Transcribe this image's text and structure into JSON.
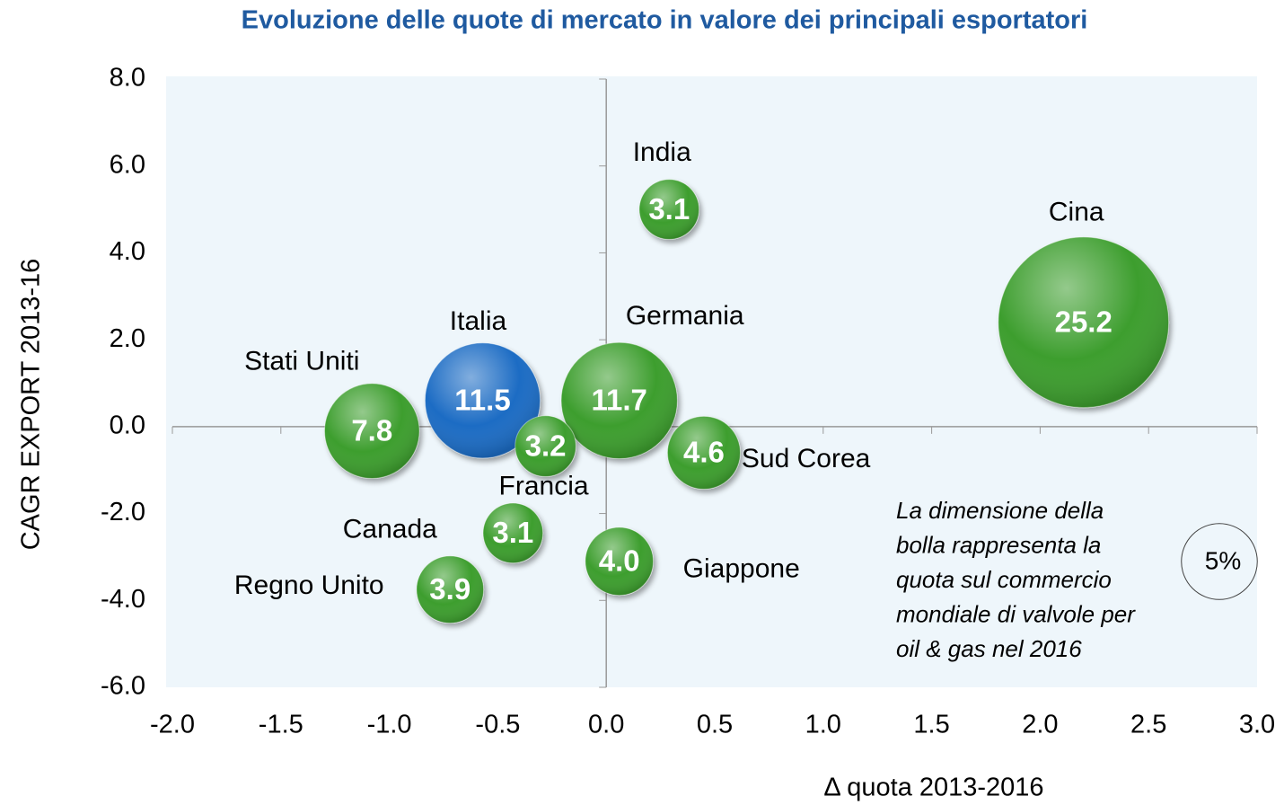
{
  "chart_data": {
    "type": "bubble",
    "title": "Evoluzione delle quote di mercato in valore dei principali esportatori",
    "xlabel": "Δ quota 2013-2016",
    "ylabel": "CAGR  EXPORT 2013-16",
    "xlim": [
      -2,
      3
    ],
    "ylim": [
      -6,
      8
    ],
    "xticks": [
      {
        "value": -2,
        "label": "-2.0"
      },
      {
        "value": -1.5,
        "label": "-1.5"
      },
      {
        "value": -1,
        "label": "-1.0"
      },
      {
        "value": -0.5,
        "label": "-0.5"
      },
      {
        "value": 0,
        "label": "0.0"
      },
      {
        "value": 0.5,
        "label": "0.5"
      },
      {
        "value": 1,
        "label": "1.0"
      },
      {
        "value": 1.5,
        "label": "1.5"
      },
      {
        "value": 2,
        "label": "2.0"
      },
      {
        "value": 2.5,
        "label": "2.5"
      },
      {
        "value": 3,
        "label": "3.0"
      }
    ],
    "yticks": [
      {
        "value": -6,
        "label": "-6.0"
      },
      {
        "value": -4,
        "label": "-4.0"
      },
      {
        "value": -2,
        "label": "-2.0"
      },
      {
        "value": 0,
        "label": "0.0"
      },
      {
        "value": 2,
        "label": "2.0"
      },
      {
        "value": 4,
        "label": "4.0"
      },
      {
        "value": 6,
        "label": "6.0"
      },
      {
        "value": 8,
        "label": "8.0"
      }
    ],
    "categories": [
      "India",
      "Cina",
      "Italia",
      "Germania",
      "Stati Uniti",
      "Francia",
      "Sud Corea",
      "Canada",
      "Giappone",
      "Regno Unito"
    ],
    "x": [
      0.29,
      2.2,
      -0.57,
      0.06,
      -1.08,
      -0.28,
      0.45,
      -0.43,
      0.06,
      -0.72
    ],
    "y": [
      5.0,
      2.4,
      0.6,
      0.6,
      -0.1,
      -0.45,
      -0.6,
      -2.45,
      -3.1,
      -3.75
    ],
    "sizes": [
      3.1,
      25.2,
      11.5,
      11.7,
      7.8,
      3.2,
      4.6,
      3.1,
      4.0,
      3.9
    ],
    "size_labels": [
      "3.1",
      "25.2",
      "11.5",
      "11.7",
      "7.8",
      "3.2",
      "4.6",
      "3.1",
      "4.0",
      "3.9"
    ],
    "colors": [
      "#3c9e2e",
      "#3c9e2e",
      "#1b6cc4",
      "#3c9e2e",
      "#3c9e2e",
      "#3c9e2e",
      "#3c9e2e",
      "#3c9e2e",
      "#3c9e2e",
      "#3c9e2e"
    ],
    "size_legend": {
      "value": 5,
      "label": "5%"
    },
    "annotation": [
      "La dimensione della",
      "bolla rappresenta la",
      "quota sul commercio",
      "mondiale di valvole per",
      "oil & gas nel 2016"
    ]
  }
}
